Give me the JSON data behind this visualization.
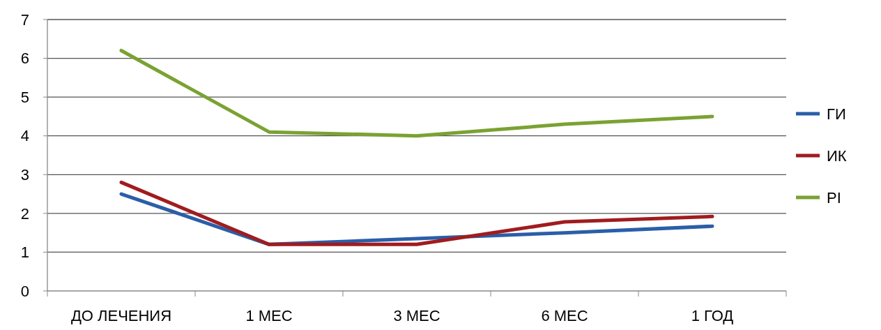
{
  "chart_data": {
    "type": "line",
    "categories": [
      "ДО ЛЕЧЕНИЯ",
      "1 МЕС",
      "3 МЕС",
      "6 МЕС",
      "1 ГОД"
    ],
    "series": [
      {
        "name": "ГИ",
        "color": "#2a5ea8",
        "values": [
          2.5,
          1.2,
          1.35,
          1.5,
          1.67
        ]
      },
      {
        "name": "ИК",
        "color": "#a01c1f",
        "values": [
          2.8,
          1.2,
          1.2,
          1.78,
          1.92
        ]
      },
      {
        "name": "PI",
        "color": "#7aa232",
        "values": [
          6.2,
          4.1,
          4.0,
          4.3,
          4.5
        ]
      }
    ],
    "ylim": [
      0,
      7
    ],
    "yticks": [
      0,
      1,
      2,
      3,
      4,
      5,
      6,
      7
    ],
    "grid": "y",
    "legend": "right",
    "marker": "none",
    "line_style": "solid"
  }
}
